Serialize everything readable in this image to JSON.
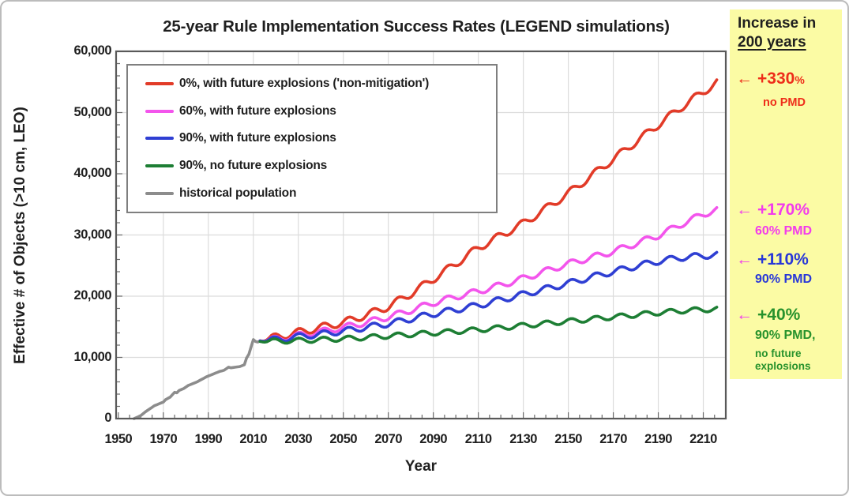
{
  "figure": {
    "bg": "#ffffff",
    "border_color": "#bcbcbc"
  },
  "chart_data": {
    "type": "line",
    "title": "25-year Rule Implementation Success Rates (LEGEND simulations)",
    "xlabel": "Year",
    "ylabel": "Effective # of Objects (>10 cm, LEO)",
    "xlim": [
      1949,
      2220
    ],
    "ylim": [
      0,
      60000
    ],
    "xticks": [
      1950,
      1970,
      1990,
      2010,
      2030,
      2050,
      2070,
      2090,
      2110,
      2130,
      2150,
      2170,
      2190,
      2210
    ],
    "yticks": [
      0,
      10000,
      20000,
      30000,
      40000,
      50000,
      60000
    ],
    "ytick_labels": [
      "0",
      "10,000",
      "20,000",
      "30,000",
      "40,000",
      "50,000",
      "60,000"
    ],
    "x_minor_step": 5,
    "y_minor_step": 2000,
    "grid": true,
    "grid_color": "#dcdcdc",
    "frame_color": "#595959",
    "tick_color": "#6b6b6b",
    "legend_position": "top-left-inside",
    "wiggle": {
      "period_years": 11,
      "phase_zero_year": 2016.5,
      "ramp_years": 5
    },
    "series": [
      {
        "id": "non-mitigation",
        "name": "0%, with future explosions ('non-mitigation')",
        "color": "#e23b28",
        "wiggle_amp": 600,
        "points": [
          [
            2013,
            12700
          ],
          [
            2020,
            13300
          ],
          [
            2030,
            14100
          ],
          [
            2040,
            14900
          ],
          [
            2050,
            15700
          ],
          [
            2060,
            16900
          ],
          [
            2070,
            18300
          ],
          [
            2080,
            20400
          ],
          [
            2090,
            22800
          ],
          [
            2100,
            25300
          ],
          [
            2110,
            27900
          ],
          [
            2120,
            29900
          ],
          [
            2130,
            31900
          ],
          [
            2140,
            34300
          ],
          [
            2150,
            36800
          ],
          [
            2160,
            39600
          ],
          [
            2170,
            42400
          ],
          [
            2180,
            45200
          ],
          [
            2190,
            48000
          ],
          [
            2200,
            50800
          ],
          [
            2210,
            53400
          ],
          [
            2216,
            54900
          ]
        ]
      },
      {
        "id": "pmd-60",
        "name": "60%, with future explosions",
        "color": "#f355ec",
        "wiggle_amp": 500,
        "points": [
          [
            2013,
            12700
          ],
          [
            2020,
            13000
          ],
          [
            2030,
            13600
          ],
          [
            2040,
            14200
          ],
          [
            2050,
            14900
          ],
          [
            2060,
            15700
          ],
          [
            2070,
            16600
          ],
          [
            2080,
            17700
          ],
          [
            2090,
            18900
          ],
          [
            2100,
            19900
          ],
          [
            2110,
            20800
          ],
          [
            2120,
            21800
          ],
          [
            2130,
            22900
          ],
          [
            2140,
            24100
          ],
          [
            2150,
            25300
          ],
          [
            2160,
            26300
          ],
          [
            2170,
            27300
          ],
          [
            2180,
            28600
          ],
          [
            2190,
            29900
          ],
          [
            2200,
            31700
          ],
          [
            2210,
            33400
          ],
          [
            2216,
            34100
          ]
        ]
      },
      {
        "id": "pmd-90",
        "name": "90%, with future explosions",
        "color": "#2f3fd3",
        "wiggle_amp": 500,
        "points": [
          [
            2013,
            12700
          ],
          [
            2020,
            12900
          ],
          [
            2030,
            13400
          ],
          [
            2040,
            13800
          ],
          [
            2050,
            14300
          ],
          [
            2060,
            14900
          ],
          [
            2070,
            15500
          ],
          [
            2080,
            16300
          ],
          [
            2090,
            17100
          ],
          [
            2100,
            17800
          ],
          [
            2110,
            18500
          ],
          [
            2120,
            19400
          ],
          [
            2130,
            20300
          ],
          [
            2140,
            21200
          ],
          [
            2150,
            22100
          ],
          [
            2160,
            23100
          ],
          [
            2170,
            24000
          ],
          [
            2180,
            24900
          ],
          [
            2190,
            25700
          ],
          [
            2200,
            26300
          ],
          [
            2210,
            26600
          ],
          [
            2216,
            26800
          ]
        ]
      },
      {
        "id": "pmd-90-no-explosions",
        "name": "90%, no future explosions",
        "color": "#1d7e34",
        "wiggle_amp": 400,
        "points": [
          [
            2013,
            12600
          ],
          [
            2020,
            12650
          ],
          [
            2030,
            12750
          ],
          [
            2040,
            12900
          ],
          [
            2050,
            13050
          ],
          [
            2060,
            13250
          ],
          [
            2070,
            13500
          ],
          [
            2080,
            13750
          ],
          [
            2090,
            14000
          ],
          [
            2100,
            14250
          ],
          [
            2110,
            14500
          ],
          [
            2120,
            14850
          ],
          [
            2130,
            15200
          ],
          [
            2140,
            15550
          ],
          [
            2150,
            15900
          ],
          [
            2160,
            16250
          ],
          [
            2170,
            16600
          ],
          [
            2180,
            16950
          ],
          [
            2190,
            17300
          ],
          [
            2200,
            17600
          ],
          [
            2210,
            17800
          ],
          [
            2216,
            17900
          ]
        ]
      },
      {
        "id": "historical",
        "name": "historical population",
        "color": "#8c8c8c",
        "wiggle_amp": 0,
        "points": [
          [
            1957,
            0
          ],
          [
            1958,
            150
          ],
          [
            1960,
            500
          ],
          [
            1962,
            1100
          ],
          [
            1964,
            1600
          ],
          [
            1966,
            2100
          ],
          [
            1968,
            2400
          ],
          [
            1970,
            2700
          ],
          [
            1971,
            3100
          ],
          [
            1973,
            3500
          ],
          [
            1975,
            4300
          ],
          [
            1976,
            4200
          ],
          [
            1977,
            4600
          ],
          [
            1979,
            4900
          ],
          [
            1981,
            5400
          ],
          [
            1983,
            5700
          ],
          [
            1985,
            6000
          ],
          [
            1987,
            6400
          ],
          [
            1989,
            6800
          ],
          [
            1991,
            7100
          ],
          [
            1993,
            7400
          ],
          [
            1995,
            7700
          ],
          [
            1997,
            7900
          ],
          [
            1999,
            8400
          ],
          [
            2000,
            8300
          ],
          [
            2002,
            8400
          ],
          [
            2004,
            8500
          ],
          [
            2006,
            8800
          ],
          [
            2007,
            9900
          ],
          [
            2008,
            10500
          ],
          [
            2009,
            11700
          ],
          [
            2010,
            12900
          ],
          [
            2011,
            12600
          ],
          [
            2012,
            12500
          ],
          [
            2013,
            12700
          ]
        ]
      }
    ]
  },
  "side_panel": {
    "bg": "#fbfba4",
    "title_line1": "Increase in",
    "title_line2": "200 years",
    "arrow_icon": "←",
    "colors": {
      "red": "#ee2d1a",
      "magenta": "#f23cec",
      "blue": "#2837d8",
      "green": "#27922c"
    },
    "entries": [
      {
        "arrow": "←",
        "value": "+330",
        "suffix": "%",
        "notes": [
          "no PMD"
        ]
      },
      {
        "arrow": "←",
        "value": "+170",
        "suffix": "%",
        "notes": [
          "60% PMD"
        ]
      },
      {
        "arrow": "←",
        "value": "+110",
        "suffix": "%",
        "notes": [
          "90% PMD"
        ]
      },
      {
        "arrow": "←",
        "value": "+40",
        "suffix": "%",
        "notes": [
          "90% PMD,",
          "no future",
          "explosions"
        ]
      }
    ]
  }
}
